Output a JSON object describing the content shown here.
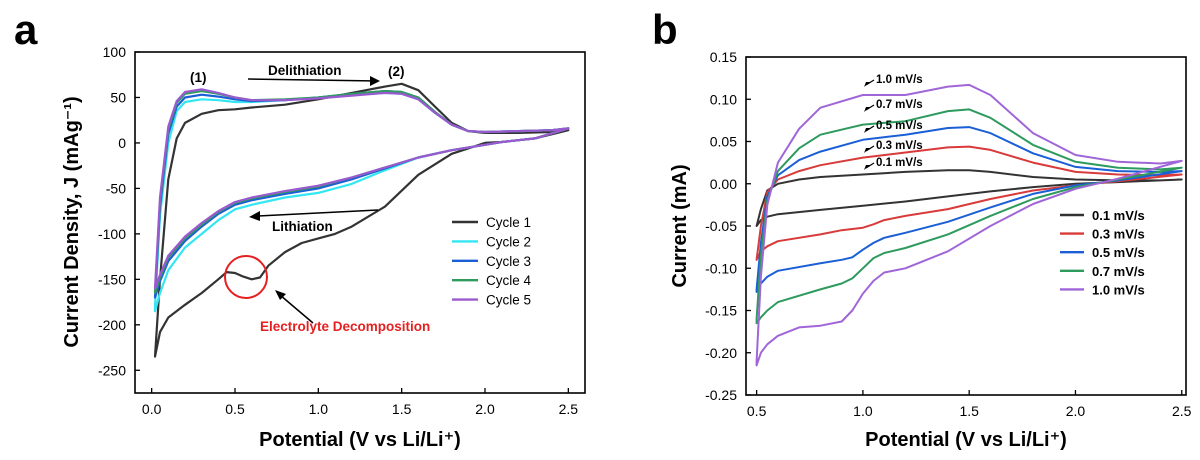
{
  "chart_data": [
    {
      "panel": "a",
      "type": "line",
      "title": "",
      "xlabel": "Potential (V vs Li/Li⁺)",
      "ylabel": "Current Density, J (mAg⁻¹)",
      "xlim": [
        -0.1,
        2.6
      ],
      "ylim": [
        -275,
        100
      ],
      "xticks": [
        0.0,
        0.5,
        1.0,
        1.5,
        2.0,
        2.5
      ],
      "xtick_labels": [
        "0.0",
        "0.5",
        "1.0",
        "1.5",
        "2.0",
        "2.5"
      ],
      "yticks": [
        100,
        50,
        0,
        -50,
        -100,
        -150,
        -200,
        -250
      ],
      "ytick_labels": [
        "100",
        "50",
        "0",
        "-50",
        "-100",
        "-150",
        "-200",
        "-250"
      ],
      "legend_position": "lower-right",
      "annotations": {
        "peak1": "(1)",
        "peak2": "(2)",
        "delithiation": "Delithiation",
        "lithiation": "Lithiation",
        "decomposition": "Electrolyte Decomposition"
      },
      "series": [
        {
          "name": "Cycle 1",
          "color": "#333333",
          "anodic_x": [
            0.02,
            0.05,
            0.1,
            0.15,
            0.2,
            0.3,
            0.4,
            0.5,
            0.6,
            0.8,
            1.0,
            1.2,
            1.4,
            1.5,
            1.6,
            1.7,
            1.8,
            1.9,
            2.0,
            2.2,
            2.4,
            2.5
          ],
          "anodic_y": [
            -235,
            -150,
            -40,
            5,
            22,
            32,
            36,
            37,
            39,
            42,
            48,
            55,
            62,
            65,
            58,
            40,
            22,
            13,
            11,
            11,
            12,
            14
          ],
          "cathodic_x": [
            2.5,
            2.3,
            2.1,
            2.0,
            1.8,
            1.6,
            1.4,
            1.2,
            1.1,
            1.0,
            0.9,
            0.8,
            0.7,
            0.65,
            0.6,
            0.55,
            0.5,
            0.45,
            0.4,
            0.3,
            0.2,
            0.1,
            0.05,
            0.02
          ],
          "cathodic_y": [
            14,
            5,
            1,
            0,
            -12,
            -35,
            -70,
            -92,
            -100,
            -105,
            -110,
            -120,
            -135,
            -148,
            -150,
            -147,
            -143,
            -142,
            -150,
            -165,
            -178,
            -192,
            -208,
            -235
          ]
        },
        {
          "name": "Cycle 2",
          "color": "#33e6f2",
          "anodic_x": [
            0.02,
            0.05,
            0.1,
            0.15,
            0.2,
            0.3,
            0.4,
            0.5,
            0.6,
            0.8,
            1.0,
            1.2,
            1.4,
            1.5,
            1.6,
            1.7,
            1.8,
            1.9,
            2.0,
            2.2,
            2.4,
            2.5
          ],
          "anodic_y": [
            -180,
            -80,
            0,
            35,
            45,
            48,
            47,
            45,
            45,
            47,
            50,
            53,
            55,
            54,
            48,
            33,
            20,
            13,
            12,
            13,
            14,
            16
          ],
          "cathodic_x": [
            2.5,
            2.3,
            2.1,
            2.0,
            1.8,
            1.6,
            1.4,
            1.2,
            1.0,
            0.8,
            0.6,
            0.5,
            0.4,
            0.3,
            0.2,
            0.1,
            0.05,
            0.02
          ],
          "cathodic_y": [
            16,
            5,
            1,
            -2,
            -8,
            -16,
            -30,
            -45,
            -55,
            -60,
            -68,
            -73,
            -85,
            -100,
            -115,
            -140,
            -165,
            -185
          ]
        },
        {
          "name": "Cycle 3",
          "color": "#1a5fd6",
          "anodic_x": [
            0.02,
            0.05,
            0.1,
            0.15,
            0.2,
            0.3,
            0.4,
            0.5,
            0.6,
            0.8,
            1.0,
            1.2,
            1.4,
            1.5,
            1.6,
            1.7,
            1.8,
            1.9,
            2.0,
            2.2,
            2.4,
            2.5
          ],
          "anodic_y": [
            -170,
            -70,
            10,
            40,
            50,
            53,
            51,
            48,
            46,
            47,
            50,
            54,
            57,
            56,
            50,
            34,
            20,
            13,
            12,
            13,
            14,
            16
          ],
          "cathodic_x": [
            2.5,
            2.3,
            2.1,
            2.0,
            1.8,
            1.6,
            1.4,
            1.2,
            1.0,
            0.8,
            0.6,
            0.5,
            0.4,
            0.3,
            0.2,
            0.1,
            0.05,
            0.02
          ],
          "cathodic_y": [
            16,
            5,
            1,
            -2,
            -8,
            -16,
            -28,
            -40,
            -50,
            -56,
            -63,
            -68,
            -78,
            -92,
            -108,
            -130,
            -152,
            -170
          ]
        },
        {
          "name": "Cycle 4",
          "color": "#2e9a5e",
          "anodic_x": [
            0.02,
            0.05,
            0.1,
            0.15,
            0.2,
            0.3,
            0.4,
            0.5,
            0.6,
            0.8,
            1.0,
            1.2,
            1.4,
            1.5,
            1.6,
            1.7,
            1.8,
            1.9,
            2.0,
            2.2,
            2.4,
            2.5
          ],
          "anodic_y": [
            -165,
            -65,
            15,
            44,
            54,
            57,
            54,
            50,
            47,
            48,
            50,
            54,
            57,
            56,
            50,
            34,
            20,
            13,
            12,
            13,
            14,
            16
          ],
          "cathodic_x": [
            2.5,
            2.3,
            2.1,
            2.0,
            1.8,
            1.6,
            1.4,
            1.2,
            1.0,
            0.8,
            0.6,
            0.5,
            0.4,
            0.3,
            0.2,
            0.1,
            0.05,
            0.02
          ],
          "cathodic_y": [
            16,
            5,
            1,
            -2,
            -8,
            -16,
            -27,
            -38,
            -48,
            -54,
            -61,
            -66,
            -76,
            -90,
            -105,
            -126,
            -148,
            -165
          ]
        },
        {
          "name": "Cycle 5",
          "color": "#9b59d0",
          "anodic_x": [
            0.02,
            0.05,
            0.1,
            0.15,
            0.2,
            0.3,
            0.4,
            0.5,
            0.6,
            0.8,
            1.0,
            1.2,
            1.4,
            1.5,
            1.6,
            1.7,
            1.8,
            1.9,
            2.0,
            2.2,
            2.4,
            2.5
          ],
          "anodic_y": [
            -160,
            -60,
            18,
            46,
            56,
            59,
            55,
            50,
            47,
            47,
            49,
            52,
            55,
            54,
            48,
            33,
            20,
            13,
            12,
            13,
            14,
            16
          ],
          "cathodic_x": [
            2.5,
            2.3,
            2.1,
            2.0,
            1.8,
            1.6,
            1.4,
            1.2,
            1.0,
            0.8,
            0.6,
            0.5,
            0.4,
            0.3,
            0.2,
            0.1,
            0.05,
            0.02
          ],
          "cathodic_y": [
            16,
            5,
            1,
            -2,
            -8,
            -16,
            -27,
            -38,
            -47,
            -53,
            -60,
            -65,
            -75,
            -88,
            -103,
            -124,
            -145,
            -160
          ]
        }
      ]
    },
    {
      "panel": "b",
      "type": "line",
      "title": "",
      "xlabel": "Potential (V vs Li/Li⁺)",
      "ylabel": "Current (mA)",
      "xlim": [
        0.45,
        2.52
      ],
      "ylim": [
        -0.25,
        0.15
      ],
      "xticks": [
        0.5,
        1.0,
        1.5,
        2.0,
        2.5
      ],
      "xtick_labels": [
        "0.5",
        "1.0",
        "1.5",
        "2.0",
        "2.5"
      ],
      "yticks": [
        0.15,
        0.1,
        0.05,
        0.0,
        -0.05,
        -0.1,
        -0.15,
        -0.2,
        -0.25
      ],
      "ytick_labels": [
        "0.15",
        "0.10",
        "0.05",
        "0.00",
        "-0.05",
        "-0.10",
        "-0.15",
        "-0.20",
        "-0.25"
      ],
      "legend_position": "lower-right",
      "series": [
        {
          "name": "0.1 mV/s",
          "color": "#333333",
          "anodic_x": [
            0.5,
            0.52,
            0.55,
            0.6,
            0.7,
            0.8,
            1.0,
            1.2,
            1.4,
            1.5,
            1.6,
            1.8,
            2.0,
            2.2,
            2.4,
            2.5
          ],
          "anodic_y": [
            -0.05,
            -0.03,
            -0.008,
            0.0,
            0.005,
            0.008,
            0.011,
            0.014,
            0.016,
            0.016,
            0.014,
            0.008,
            0.005,
            0.004,
            0.004,
            0.005
          ],
          "cathodic_x": [
            2.5,
            2.2,
            2.0,
            1.8,
            1.6,
            1.4,
            1.2,
            1.0,
            0.8,
            0.6,
            0.55,
            0.52,
            0.5
          ],
          "cathodic_y": [
            0.005,
            0.002,
            0.0,
            -0.004,
            -0.009,
            -0.015,
            -0.021,
            -0.026,
            -0.031,
            -0.036,
            -0.039,
            -0.043,
            -0.05
          ]
        },
        {
          "name": "0.3 mV/s",
          "color": "#d93a3a",
          "anodic_x": [
            0.5,
            0.52,
            0.55,
            0.6,
            0.7,
            0.8,
            1.0,
            1.2,
            1.4,
            1.5,
            1.6,
            1.8,
            2.0,
            2.2,
            2.4,
            2.5
          ],
          "anodic_y": [
            -0.09,
            -0.05,
            -0.01,
            0.005,
            0.015,
            0.022,
            0.031,
            0.037,
            0.043,
            0.044,
            0.04,
            0.025,
            0.014,
            0.011,
            0.01,
            0.011
          ],
          "cathodic_x": [
            2.5,
            2.2,
            2.0,
            1.8,
            1.6,
            1.4,
            1.2,
            1.1,
            1.05,
            1.0,
            0.9,
            0.8,
            0.6,
            0.55,
            0.52,
            0.5
          ],
          "cathodic_y": [
            0.011,
            0.003,
            -0.002,
            -0.008,
            -0.018,
            -0.03,
            -0.038,
            -0.043,
            -0.048,
            -0.052,
            -0.055,
            -0.06,
            -0.068,
            -0.074,
            -0.08,
            -0.09
          ]
        },
        {
          "name": "0.5 mV/s",
          "color": "#1a5fd6",
          "anodic_x": [
            0.5,
            0.52,
            0.55,
            0.6,
            0.7,
            0.8,
            1.0,
            1.2,
            1.4,
            1.5,
            1.6,
            1.8,
            2.0,
            2.2,
            2.4,
            2.5
          ],
          "anodic_y": [
            -0.125,
            -0.07,
            -0.015,
            0.01,
            0.028,
            0.038,
            0.052,
            0.058,
            0.066,
            0.067,
            0.06,
            0.036,
            0.02,
            0.015,
            0.014,
            0.015
          ],
          "cathodic_x": [
            2.5,
            2.2,
            2.0,
            1.8,
            1.6,
            1.4,
            1.2,
            1.1,
            1.05,
            1.0,
            0.95,
            0.9,
            0.8,
            0.6,
            0.55,
            0.52,
            0.5
          ],
          "cathodic_y": [
            0.015,
            0.004,
            -0.002,
            -0.012,
            -0.028,
            -0.045,
            -0.058,
            -0.064,
            -0.07,
            -0.078,
            -0.087,
            -0.09,
            -0.094,
            -0.103,
            -0.11,
            -0.118,
            -0.128
          ]
        },
        {
          "name": "0.7 mV/s",
          "color": "#2e9a5e",
          "anodic_x": [
            0.5,
            0.52,
            0.55,
            0.6,
            0.7,
            0.8,
            1.0,
            1.2,
            1.4,
            1.5,
            1.6,
            1.8,
            2.0,
            2.2,
            2.4,
            2.5
          ],
          "anodic_y": [
            -0.16,
            -0.085,
            -0.02,
            0.015,
            0.042,
            0.058,
            0.07,
            0.074,
            0.086,
            0.088,
            0.078,
            0.046,
            0.026,
            0.019,
            0.017,
            0.019
          ],
          "cathodic_x": [
            2.5,
            2.2,
            2.0,
            1.8,
            1.6,
            1.4,
            1.2,
            1.1,
            1.05,
            1.0,
            0.95,
            0.9,
            0.8,
            0.6,
            0.55,
            0.52,
            0.5
          ],
          "cathodic_y": [
            0.019,
            0.005,
            -0.004,
            -0.018,
            -0.038,
            -0.06,
            -0.076,
            -0.082,
            -0.088,
            -0.1,
            -0.112,
            -0.118,
            -0.125,
            -0.14,
            -0.15,
            -0.158,
            -0.165
          ]
        },
        {
          "name": "1.0 mV/s",
          "color": "#a066d8",
          "anodic_x": [
            0.5,
            0.52,
            0.55,
            0.6,
            0.7,
            0.8,
            1.0,
            1.1,
            1.2,
            1.4,
            1.5,
            1.6,
            1.8,
            2.0,
            2.2,
            2.4,
            2.5
          ],
          "anodic_y": [
            -0.21,
            -0.11,
            -0.025,
            0.025,
            0.065,
            0.09,
            0.105,
            0.105,
            0.105,
            0.115,
            0.117,
            0.105,
            0.06,
            0.034,
            0.026,
            0.024,
            0.027
          ],
          "cathodic_x": [
            2.5,
            2.2,
            2.0,
            1.8,
            1.6,
            1.4,
            1.2,
            1.1,
            1.05,
            1.0,
            0.95,
            0.9,
            0.8,
            0.7,
            0.6,
            0.55,
            0.52,
            0.5
          ],
          "cathodic_y": [
            0.027,
            0.006,
            -0.006,
            -0.024,
            -0.05,
            -0.08,
            -0.1,
            -0.105,
            -0.115,
            -0.13,
            -0.15,
            -0.163,
            -0.168,
            -0.17,
            -0.18,
            -0.19,
            -0.2,
            -0.215
          ]
        }
      ]
    }
  ],
  "panels": {
    "a": {
      "letter": "a"
    },
    "b": {
      "letter": "b"
    }
  },
  "rate_labels": [
    "1.0 mV/s",
    "0.7 mV/s",
    "0.5 mV/s",
    "0.3 mV/s",
    "0.1 mV/s"
  ]
}
